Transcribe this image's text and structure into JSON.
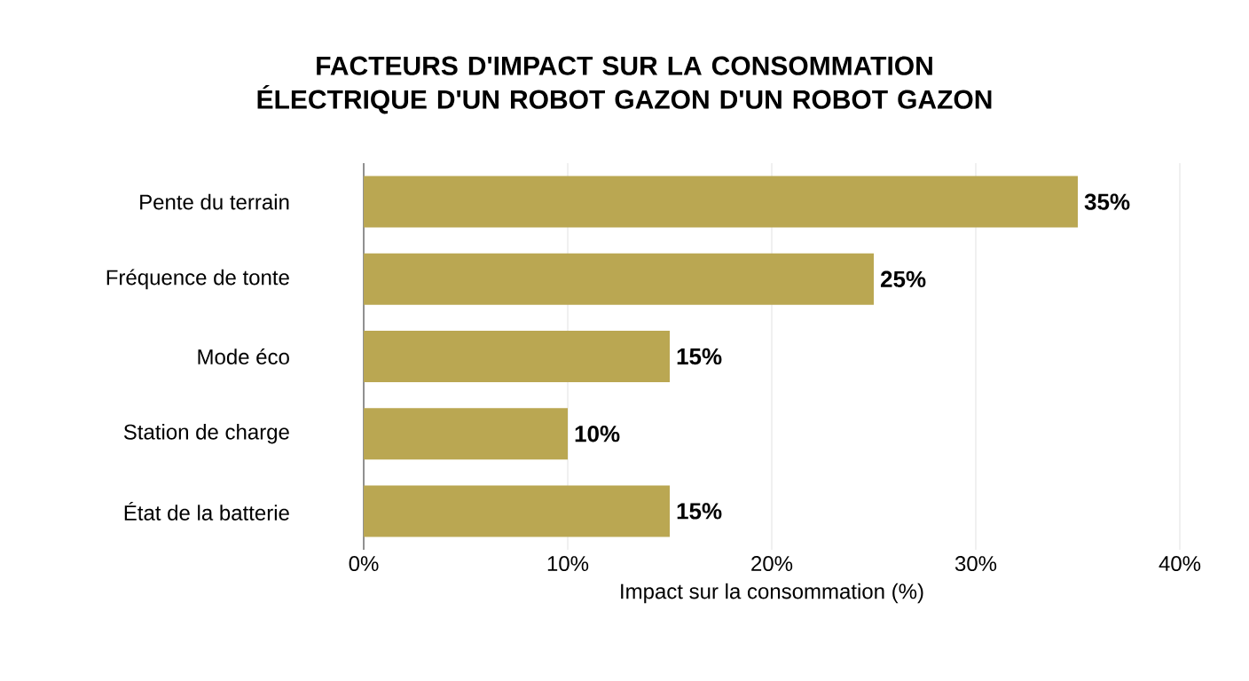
{
  "chart_data": {
    "type": "bar",
    "orientation": "horizontal",
    "title": "FACTEURS D'IMPACT SUR LA CONSOMMATION ÉLECTRIQUE D'UN ROBOT GAZON D'UN ROBOT GAZON",
    "xlabel": "Impact sur la consommation (%)",
    "categories": [
      "Pente du terrain",
      "Fréquence de tonte",
      "Mode éco",
      "Station de charge",
      "État de la batterie"
    ],
    "values": [
      35,
      25,
      15,
      10,
      15
    ],
    "value_labels": [
      "35%",
      "25%",
      "15%",
      "10%",
      "15%"
    ],
    "color": "#baa752",
    "xlim": [
      0,
      40
    ],
    "xticks": [
      {
        "value": 0,
        "label": "0%"
      },
      {
        "value": 10,
        "label": "10%"
      },
      {
        "value": 20,
        "label": "20%"
      },
      {
        "value": 30,
        "label": "30%"
      },
      {
        "value": 40,
        "label": "40%"
      }
    ],
    "grid": "x"
  }
}
